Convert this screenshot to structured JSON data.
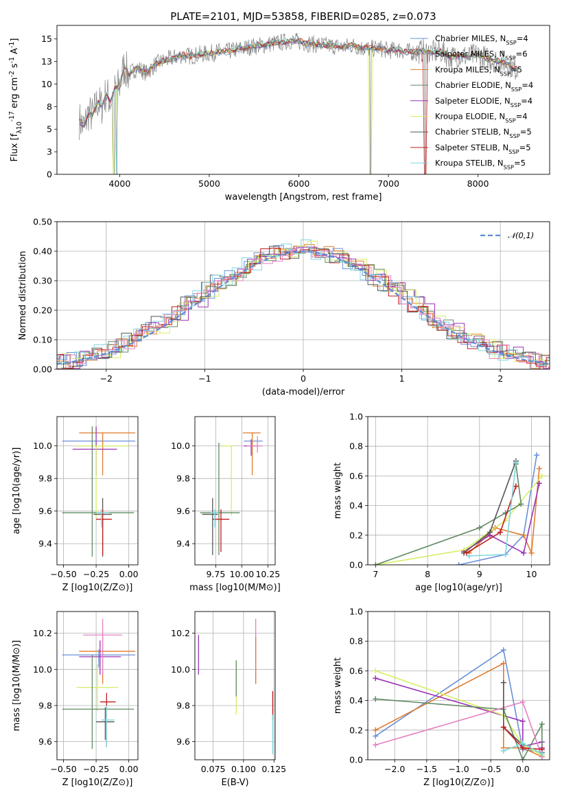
{
  "palette": [
    "#6A8FD8",
    "#E07B2C",
    "#8C8C8C",
    "#5F8A62",
    "#9B32B5",
    "#D6EE62",
    "#555555",
    "#C01C1C",
    "#7ED6DE",
    "#E47FC1"
  ],
  "chart_data": [
    {
      "id": "spectrum",
      "type": "line",
      "title": "PLATE=2101, MJD=53858, FIBERID=0285, z=0.073",
      "xlabel": "wavelength [Angstrom, rest frame]",
      "ylabel": "Flux [f_λ10^-17 erg cm^-2 s^-1 A^-1]",
      "xlim": [
        3300,
        8800
      ],
      "ylim": [
        0,
        16.5
      ],
      "xticks": [
        4000,
        5000,
        6000,
        7000,
        8000
      ],
      "yticks": [
        0.0,
        2.5,
        5.0,
        7.5,
        10.0,
        12.5,
        15.0
      ],
      "grid": false,
      "legend_position": "right",
      "legend": [
        {
          "text": "Chabrier MILES, N_SSP=4",
          "color": "#6A8FD8"
        },
        {
          "text": "Salpeter MILES, N_SSP=6",
          "color": "#8C8C8C"
        },
        {
          "text": "Kroupa MILES, N_SSP=5",
          "color": "#E07B2C"
        },
        {
          "text": "Chabrier ELODIE, N_SSP=4",
          "color": "#5F8A62"
        },
        {
          "text": "Salpeter ELODIE, N_SSP=4",
          "color": "#9B32B5"
        },
        {
          "text": "Kroupa ELODIE, N_SSP=4",
          "color": "#D6EE62"
        },
        {
          "text": "Chabrier STELIB, N_SSP=5",
          "color": "#555555"
        },
        {
          "text": "Salpeter STELIB, N_SSP=5",
          "color": "#C01C1C"
        },
        {
          "text": "Kroupa STELIB, N_SSP=5",
          "color": "#7ED6DE"
        }
      ],
      "data_series": {
        "name": "data",
        "x": [
          3550,
          3600,
          3650,
          3700,
          3750,
          3800,
          3850,
          3900,
          3950,
          4000,
          4050,
          4100,
          4150,
          4200,
          4300,
          4400,
          4500,
          4600,
          4700,
          4800,
          4900,
          5000,
          5100,
          5200,
          5300,
          5400,
          5500,
          5600,
          5700,
          5800,
          5900,
          6000,
          6100,
          6200,
          6300,
          6400,
          6500,
          6600,
          6700,
          6800,
          6900,
          7000,
          7100,
          7200,
          7300,
          7400,
          7500,
          7600,
          7700,
          7800,
          7900,
          8000,
          8100,
          8200,
          8300,
          8400,
          8450
        ],
        "y": [
          6.0,
          5.2,
          6.8,
          6.5,
          8.0,
          7.5,
          9.0,
          8.0,
          9.5,
          9.8,
          12.0,
          11.0,
          11.5,
          11.8,
          11.2,
          12.2,
          12.6,
          12.9,
          13.2,
          13.1,
          13.3,
          13.4,
          13.6,
          13.6,
          13.8,
          14.0,
          14.2,
          14.3,
          14.5,
          14.6,
          14.8,
          14.7,
          14.5,
          14.4,
          14.3,
          14.2,
          14.1,
          14.3,
          14.0,
          13.9,
          14.0,
          13.7,
          13.8,
          13.6,
          13.5,
          13.7,
          13.5,
          13.6,
          12.9,
          13.2,
          13.0,
          13.3,
          12.8,
          12.6,
          12.4,
          11.8,
          11.6
        ]
      },
      "dips": [
        {
          "x": 3933,
          "y": 0
        },
        {
          "x": 3968,
          "y": 0
        },
        {
          "x": 6800,
          "y": 0
        },
        {
          "x": 7410,
          "y": 0
        }
      ]
    },
    {
      "id": "residuals",
      "type": "histogram",
      "xlabel": "(data-model)/error",
      "ylabel": "Normed distribution",
      "xlim": [
        -2.5,
        2.5
      ],
      "ylim": [
        0,
        0.5
      ],
      "xticks": [
        -2,
        -1,
        0,
        1,
        2
      ],
      "yticks": [
        0.0,
        0.1,
        0.2,
        0.3,
        0.4,
        0.5
      ],
      "grid": true,
      "legend_position": "upper right",
      "legend": [
        {
          "text": "𝒩(0,1)",
          "color": "#5B8BD6"
        }
      ],
      "bin_width": 0.1,
      "base_density": [
        0.025,
        0.03,
        0.035,
        0.045,
        0.055,
        0.065,
        0.08,
        0.095,
        0.11,
        0.13,
        0.15,
        0.17,
        0.195,
        0.22,
        0.24,
        0.27,
        0.29,
        0.31,
        0.33,
        0.35,
        0.365,
        0.38,
        0.39,
        0.4,
        0.405,
        0.41,
        0.4,
        0.39,
        0.38,
        0.365,
        0.35,
        0.33,
        0.31,
        0.29,
        0.27,
        0.24,
        0.22,
        0.195,
        0.17,
        0.15,
        0.13,
        0.11,
        0.095,
        0.08,
        0.065,
        0.055,
        0.045,
        0.035,
        0.03,
        0.025
      ]
    },
    {
      "id": "age-vs-Z",
      "type": "errorbar",
      "xlabel": "Z [log10(Z/Z⊙)]",
      "ylabel": "age [log10(age/yr)]",
      "xlim": [
        -0.55,
        0.07
      ],
      "ylim": [
        9.27,
        10.18
      ],
      "xticks": [
        -0.5,
        -0.25,
        0.0
      ],
      "yticks": [
        9.4,
        9.6,
        9.8,
        10.0
      ],
      "grid": true,
      "points": [
        {
          "x": -0.23,
          "y": 10.03,
          "xerr": [
            0.28,
            0.28
          ],
          "yerr": [
            0.0,
            0.0
          ],
          "color": "#6A8FD8"
        },
        {
          "x": -0.2,
          "y": 10.08,
          "xerr": [
            0.18,
            0.25
          ],
          "yerr": [
            0.26,
            0.0
          ],
          "color": "#E07B2C"
        },
        {
          "x": -0.25,
          "y": 9.98,
          "xerr": [
            0.18,
            0.16
          ],
          "yerr": [
            0.16,
            0.14
          ],
          "color": "#9B32B5"
        },
        {
          "x": -0.25,
          "y": 10.0,
          "xerr": [
            0.15,
            0.25
          ],
          "yerr": [
            0.44,
            0.0
          ],
          "color": "#D6EE62"
        },
        {
          "x": -0.28,
          "y": 9.59,
          "xerr": [
            0.23,
            0.32
          ],
          "yerr": [
            0.27,
            0.53
          ],
          "color": "#5F8A62"
        },
        {
          "x": -0.2,
          "y": 9.58,
          "xerr": [
            0.07,
            0.07
          ],
          "yerr": [
            0.26,
            0.1
          ],
          "color": "#555555"
        },
        {
          "x": -0.2,
          "y": 9.55,
          "xerr": [
            0.05,
            0.07
          ],
          "yerr": [
            0.22,
            0.06
          ],
          "color": "#C01C1C"
        },
        {
          "x": -0.21,
          "y": 9.59,
          "xerr": [
            0.04,
            0.06
          ],
          "yerr": [
            0.09,
            0.02
          ],
          "color": "#7ED6DE"
        }
      ]
    },
    {
      "id": "age-vs-mass",
      "type": "errorbar",
      "xlabel": "mass [log10(M/M⊙)]",
      "ylabel": "",
      "xlim": [
        9.55,
        10.32
      ],
      "ylim": [
        9.27,
        10.18
      ],
      "xticks": [
        9.75,
        10.0,
        10.25
      ],
      "yticks": [
        9.4,
        9.6,
        9.8,
        10.0
      ],
      "grid": true,
      "points": [
        {
          "x": 10.1,
          "y": 10.03,
          "xerr": [
            0.08,
            0.1
          ],
          "yerr": [
            0.0,
            0.0
          ],
          "color": "#6A8FD8"
        },
        {
          "x": 10.1,
          "y": 10.08,
          "xerr": [
            0.09,
            0.08
          ],
          "yerr": [
            0.26,
            0.0
          ],
          "color": "#E07B2C"
        },
        {
          "x": 10.09,
          "y": 10.0,
          "xerr": [
            0.07,
            0.05
          ],
          "yerr": [
            0.06,
            0.04
          ],
          "color": "#9B32B5"
        },
        {
          "x": 10.15,
          "y": 10.0,
          "xerr": [
            0.1,
            0.05
          ],
          "yerr": [
            0.04,
            0.06
          ],
          "color": "#E47FC1"
        },
        {
          "x": 9.9,
          "y": 10.0,
          "xerr": [
            0.1,
            0.02
          ],
          "yerr": [
            0.43,
            0.0
          ],
          "color": "#D6EE62"
        },
        {
          "x": 9.78,
          "y": 9.59,
          "xerr": [
            0.18,
            0.2
          ],
          "yerr": [
            0.26,
            0.43
          ],
          "color": "#5F8A62"
        },
        {
          "x": 9.72,
          "y": 9.58,
          "xerr": [
            0.1,
            0.05
          ],
          "yerr": [
            0.25,
            0.1
          ],
          "color": "#555555"
        },
        {
          "x": 9.8,
          "y": 9.55,
          "xerr": [
            0.08,
            0.08
          ],
          "yerr": [
            0.2,
            0.06
          ],
          "color": "#C01C1C"
        },
        {
          "x": 9.74,
          "y": 9.59,
          "xerr": [
            0.04,
            0.04
          ],
          "yerr": [
            0.09,
            0.02
          ],
          "color": "#7ED6DE"
        }
      ]
    },
    {
      "id": "weight-vs-age",
      "type": "line",
      "xlabel": "age [log10(age/yr)]",
      "ylabel": "mass weight",
      "xlim": [
        6.85,
        10.35
      ],
      "ylim": [
        0.0,
        1.0
      ],
      "xticks": [
        7,
        8,
        9,
        10
      ],
      "yticks": [
        0.0,
        0.2,
        0.4,
        0.6,
        0.8,
        1.0
      ],
      "grid": true,
      "series": [
        {
          "color": "#6A8FD8",
          "x": [
            8.6,
            9.5,
            9.85,
            10.1
          ],
          "y": [
            0.0,
            0.07,
            0.2,
            0.74
          ]
        },
        {
          "color": "#E07B2C",
          "x": [
            8.8,
            9.3,
            9.85,
            10.0,
            10.15
          ],
          "y": [
            0.08,
            0.25,
            0.2,
            0.08,
            0.65
          ]
        },
        {
          "color": "#9B32B5",
          "x": [
            8.7,
            9.2,
            9.85,
            10.15
          ],
          "y": [
            0.09,
            0.2,
            0.08,
            0.55
          ]
        },
        {
          "color": "#D6EE62",
          "x": [
            7.0,
            8.7,
            9.5,
            10.2
          ],
          "y": [
            0.0,
            0.1,
            0.3,
            0.6
          ]
        },
        {
          "color": "#5F8A62",
          "x": [
            7.0,
            9.0,
            9.5,
            9.8,
            9.7
          ],
          "y": [
            0.0,
            0.25,
            0.35,
            0.41,
            0.68
          ]
        },
        {
          "color": "#555555",
          "x": [
            8.7,
            9.2,
            9.7
          ],
          "y": [
            0.08,
            0.22,
            0.7
          ]
        },
        {
          "color": "#C01C1C",
          "x": [
            8.75,
            9.4,
            9.7
          ],
          "y": [
            0.08,
            0.22,
            0.53
          ]
        },
        {
          "color": "#7ED6DE",
          "x": [
            8.8,
            9.5,
            9.7
          ],
          "y": [
            0.06,
            0.07,
            0.69
          ]
        }
      ]
    },
    {
      "id": "mass-vs-Z",
      "type": "errorbar",
      "xlabel": "Z [log10(Z/Z⊙)]",
      "ylabel": "mass [log10(M/M⊙)]",
      "xlim": [
        -0.55,
        0.07
      ],
      "ylim": [
        9.5,
        10.32
      ],
      "xticks": [
        -0.5,
        -0.25,
        0.0
      ],
      "yticks": [
        9.6,
        9.8,
        10.0,
        10.2
      ],
      "grid": true,
      "points": [
        {
          "x": -0.23,
          "y": 10.08,
          "xerr": [
            0.28,
            0.28
          ],
          "yerr": [
            0.07,
            0.03
          ],
          "color": "#6A8FD8"
        },
        {
          "x": -0.2,
          "y": 10.1,
          "xerr": [
            0.18,
            0.25
          ],
          "yerr": [
            0.18,
            0.08
          ],
          "color": "#E07B2C"
        },
        {
          "x": -0.22,
          "y": 10.07,
          "xerr": [
            0.16,
            0.16
          ],
          "yerr": [
            0.1,
            0.09
          ],
          "color": "#9B32B5"
        },
        {
          "x": -0.2,
          "y": 10.19,
          "xerr": [
            0.15,
            0.15
          ],
          "yerr": [
            0.22,
            0.09
          ],
          "color": "#E47FC1"
        },
        {
          "x": -0.24,
          "y": 9.9,
          "xerr": [
            0.16,
            0.16
          ],
          "yerr": [
            0.13,
            0.13
          ],
          "color": "#D6EE62"
        },
        {
          "x": -0.28,
          "y": 9.78,
          "xerr": [
            0.23,
            0.32
          ],
          "yerr": [
            0.22,
            0.3
          ],
          "color": "#5F8A62"
        },
        {
          "x": -0.18,
          "y": 9.71,
          "xerr": [
            0.07,
            0.07
          ],
          "yerr": [
            0.1,
            0.08
          ],
          "color": "#555555"
        },
        {
          "x": -0.17,
          "y": 9.82,
          "xerr": [
            0.05,
            0.07
          ],
          "yerr": [
            0.25,
            0.05
          ],
          "color": "#C01C1C"
        },
        {
          "x": -0.17,
          "y": 9.72,
          "xerr": [
            0.04,
            0.06
          ],
          "yerr": [
            0.15,
            0.08
          ],
          "color": "#7ED6DE"
        }
      ]
    },
    {
      "id": "mass-vs-EBV",
      "type": "errorbar",
      "xlabel": "E(B-V)",
      "ylabel": "",
      "xlim": [
        0.06,
        0.126
      ],
      "ylim": [
        9.5,
        10.32
      ],
      "xticks": [
        0.075,
        0.1,
        0.125
      ],
      "yticks": [
        9.6,
        9.8,
        10.0,
        10.2
      ],
      "grid": true,
      "points": [
        {
          "x": 0.063,
          "y": 10.07,
          "xerr": [
            0,
            0
          ],
          "yerr": [
            0.1,
            0.12
          ],
          "color": "#9B32B5"
        },
        {
          "x": 0.094,
          "y": 9.9,
          "xerr": [
            0,
            0
          ],
          "yerr": [
            0.15,
            0.14
          ],
          "color": "#D6EE62"
        },
        {
          "x": 0.094,
          "y": 9.95,
          "xerr": [
            0,
            0
          ],
          "yerr": [
            0.1,
            0.1
          ],
          "color": "#5F8A62"
        },
        {
          "x": 0.11,
          "y": 10.1,
          "xerr": [
            0,
            0
          ],
          "yerr": [
            0.18,
            0.18
          ],
          "color": "#E47FC1"
        },
        {
          "x": 0.11,
          "y": 10.05,
          "xerr": [
            0,
            0
          ],
          "yerr": [
            0.13,
            0.13
          ],
          "color": "#E07B2C"
        },
        {
          "x": 0.124,
          "y": 9.8,
          "xerr": [
            0,
            0
          ],
          "yerr": [
            0.08,
            0.08
          ],
          "color": "#C01C1C"
        },
        {
          "x": 0.124,
          "y": 9.65,
          "xerr": [
            0,
            0
          ],
          "yerr": [
            0.12,
            0.1
          ],
          "color": "#7ED6DE"
        }
      ]
    },
    {
      "id": "weight-vs-Z",
      "type": "line",
      "xlabel": "Z [log10(Z/Z⊙)]",
      "ylabel": "mass weight",
      "xlim": [
        -2.42,
        0.42
      ],
      "ylim": [
        0.0,
        1.0
      ],
      "xticks": [
        -2.0,
        -1.5,
        -1.0,
        -0.5,
        0.0
      ],
      "yticks": [
        0.0,
        0.2,
        0.4,
        0.6,
        0.8,
        1.0
      ],
      "grid": true,
      "series": [
        {
          "color": "#6A8FD8",
          "x": [
            -2.3,
            -0.3,
            0.0,
            0.3
          ],
          "y": [
            0.16,
            0.74,
            0.07,
            0.05
          ]
        },
        {
          "color": "#E07B2C",
          "x": [
            -2.3,
            -0.3,
            -0.3,
            0.0,
            0.3
          ],
          "y": [
            0.2,
            0.65,
            0.08,
            0.08,
            0.02
          ]
        },
        {
          "color": "#9B32B5",
          "x": [
            -2.3,
            0.0,
            0.0,
            0.3,
            0.3
          ],
          "y": [
            0.55,
            0.26,
            0.09,
            0.12,
            0.08
          ]
        },
        {
          "color": "#D6EE62",
          "x": [
            -2.3,
            -0.3,
            0.0,
            0.3
          ],
          "y": [
            0.6,
            0.3,
            0.1,
            0.03
          ]
        },
        {
          "color": "#5F8A62",
          "x": [
            -2.3,
            -0.3,
            0.0,
            0.3,
            0.3
          ],
          "y": [
            0.41,
            0.34,
            0.0,
            0.24,
            0.05
          ]
        },
        {
          "color": "#E47FC1",
          "x": [
            -2.3,
            0.0,
            0.3
          ],
          "y": [
            0.1,
            0.39,
            0.02
          ]
        },
        {
          "color": "#555555",
          "x": [
            -0.3,
            -0.3,
            0.0
          ],
          "y": [
            0.52,
            0.22,
            0.1
          ]
        },
        {
          "color": "#C01C1C",
          "x": [
            -0.3,
            0.0,
            0.3
          ],
          "y": [
            0.22,
            0.08,
            0.07
          ]
        },
        {
          "color": "#7ED6DE",
          "x": [
            -0.3,
            0.0,
            0.3
          ],
          "y": [
            0.06,
            0.11,
            0.04
          ]
        }
      ]
    }
  ]
}
